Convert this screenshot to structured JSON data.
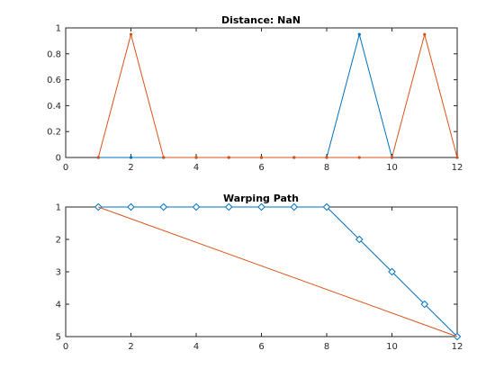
{
  "chart_data": [
    {
      "type": "line",
      "title": "Distance: NaN",
      "xlim": [
        0,
        12
      ],
      "ylim": [
        0,
        1
      ],
      "x_ticks": [
        "0",
        "2",
        "4",
        "6",
        "8",
        "10",
        "12"
      ],
      "y_ticks": [
        "0",
        "0.2",
        "0.4",
        "0.6",
        "0.8",
        "1"
      ],
      "grid": false,
      "y_direction": "normal",
      "series": [
        {
          "color": "#0072BD",
          "marker": "dot",
          "x": [
            1,
            2,
            3,
            4,
            5,
            6,
            7,
            8,
            9,
            10
          ],
          "y": [
            0,
            0,
            0,
            0,
            0,
            0,
            0,
            0,
            0.95,
            0
          ]
        },
        {
          "color": "#D95319",
          "marker": "dot",
          "x": [
            1,
            2,
            3,
            4,
            5,
            6,
            7,
            8,
            9,
            10,
            11,
            12
          ],
          "y": [
            0,
            0.95,
            0,
            0,
            0,
            0,
            0,
            0,
            0,
            0,
            0.95,
            0
          ]
        }
      ]
    },
    {
      "type": "line",
      "title": "Warping Path",
      "xlim": [
        0,
        12
      ],
      "ylim": [
        1,
        5
      ],
      "x_ticks": [
        "0",
        "2",
        "4",
        "6",
        "8",
        "10",
        "12"
      ],
      "y_ticks": [
        "1",
        "2",
        "3",
        "4",
        "5"
      ],
      "grid": false,
      "y_direction": "reverse",
      "series": [
        {
          "color": "#0072BD",
          "marker": "diamond",
          "x": [
            1,
            2,
            3,
            4,
            5,
            6,
            7,
            8,
            9,
            10,
            11,
            12
          ],
          "y": [
            1,
            1,
            1,
            1,
            1,
            1,
            1,
            1,
            2,
            3,
            4,
            5
          ]
        },
        {
          "color": "#D95319",
          "marker": "none",
          "x": [
            1,
            12
          ],
          "y": [
            1,
            5
          ]
        }
      ]
    }
  ]
}
